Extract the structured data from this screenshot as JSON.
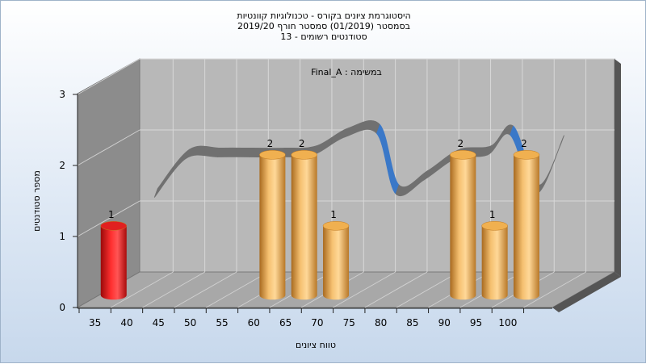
{
  "title_lines": [
    "היסטוגרמת ציונים בקורס - טכנולוגיות קוונטיות",
    "בסמסטר  (01/2019)  סמסטר חורף 2019/20",
    "סטודנטים רשומים - 13"
  ],
  "colors": {
    "red_bar": "#e01818",
    "gold_bar": "#e8a040",
    "curve_front": "#3a78c8",
    "curve_back": "#707070",
    "back_wall": "#b8b8b8",
    "left_wall": "#8c8c8c",
    "floor": "#a8a8a8"
  },
  "chart_data": {
    "type": "bar",
    "subtitle": "Final_A : במשימה",
    "xlabel": "טווח ציונים",
    "ylabel": "מספר סטודנטים",
    "x_ticks": [
      "35",
      "40",
      "45",
      "50",
      "55",
      "60",
      "65",
      "70",
      "75",
      "80",
      "85",
      "90",
      "95",
      "100"
    ],
    "ylim": [
      0,
      3
    ],
    "y_ticks": [
      "0",
      "1",
      "2",
      "3"
    ],
    "grid": true,
    "bars": [
      {
        "x": 35,
        "value": 1,
        "label": "1",
        "color": "red"
      },
      {
        "x": 60,
        "value": 2,
        "label": "2",
        "color": "gold"
      },
      {
        "x": 65,
        "value": 2,
        "label": "2",
        "color": "gold"
      },
      {
        "x": 70,
        "value": 1,
        "label": "1",
        "color": "gold"
      },
      {
        "x": 90,
        "value": 2,
        "label": "2",
        "color": "gold"
      },
      {
        "x": 95,
        "value": 1,
        "label": "1",
        "color": "gold"
      },
      {
        "x": 100,
        "value": 2,
        "label": "2",
        "color": "gold"
      }
    ],
    "curve": [
      {
        "x": 37.5,
        "y": 1.2
      },
      {
        "x": 42.5,
        "y": 1.75
      },
      {
        "x": 47.5,
        "y": 1.77
      },
      {
        "x": 52.5,
        "y": 1.77
      },
      {
        "x": 57.5,
        "y": 1.77
      },
      {
        "x": 62.5,
        "y": 1.8
      },
      {
        "x": 67.5,
        "y": 2.05
      },
      {
        "x": 72.5,
        "y": 2.1
      },
      {
        "x": 75.5,
        "y": 1.25
      },
      {
        "x": 80,
        "y": 1.45
      },
      {
        "x": 85,
        "y": 1.75
      },
      {
        "x": 90,
        "y": 1.8
      },
      {
        "x": 93.5,
        "y": 2.08
      },
      {
        "x": 97.5,
        "y": 1.25
      },
      {
        "x": 101.5,
        "y": 1.95
      }
    ]
  }
}
